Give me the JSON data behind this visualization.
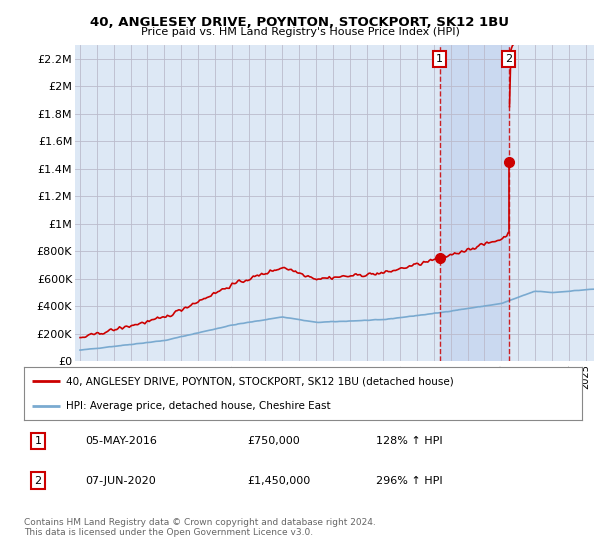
{
  "title": "40, ANGLESEY DRIVE, POYNTON, STOCKPORT, SK12 1BU",
  "subtitle": "Price paid vs. HM Land Registry's House Price Index (HPI)",
  "ylim": [
    0,
    2300000
  ],
  "yticks": [
    0,
    200000,
    400000,
    600000,
    800000,
    1000000,
    1200000,
    1400000,
    1600000,
    1800000,
    2000000,
    2200000
  ],
  "ytick_labels": [
    "£0",
    "£200K",
    "£400K",
    "£600K",
    "£800K",
    "£1M",
    "£1.2M",
    "£1.4M",
    "£1.6M",
    "£1.8M",
    "£2M",
    "£2.2M"
  ],
  "xlim_start": 1994.7,
  "xlim_end": 2025.5,
  "hpi_color": "#7aaad0",
  "property_color": "#cc0000",
  "sale1_x": 2016.35,
  "sale1_y": 750000,
  "sale2_x": 2020.44,
  "sale2_y": 1450000,
  "legend_property": "40, ANGLESEY DRIVE, POYNTON, STOCKPORT, SK12 1BU (detached house)",
  "legend_hpi": "HPI: Average price, detached house, Cheshire East",
  "annotation1_label": "1",
  "annotation1_date": "05-MAY-2016",
  "annotation1_price": "£750,000",
  "annotation1_hpi": "128% ↑ HPI",
  "annotation2_label": "2",
  "annotation2_date": "07-JUN-2020",
  "annotation2_price": "£1,450,000",
  "annotation2_hpi": "296% ↑ HPI",
  "footer": "Contains HM Land Registry data © Crown copyright and database right 2024.\nThis data is licensed under the Open Government Licence v3.0.",
  "bg_color": "#ffffff",
  "plot_bg_color": "#dde8f5",
  "grid_color": "#bbbbcc",
  "shade_color": "#c8d8f0"
}
